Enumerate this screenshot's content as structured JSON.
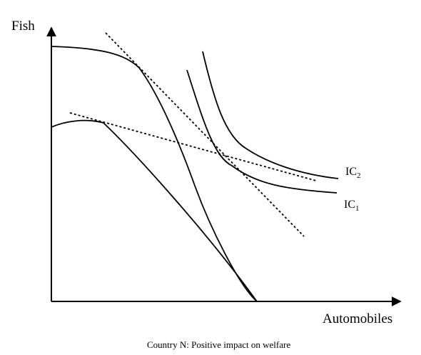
{
  "axes": {
    "y_label": "Fish",
    "x_label": "Automobiles"
  },
  "labels": {
    "ic2": "IC",
    "ic2_sub": "2",
    "ic1": "IC",
    "ic1_sub": "1"
  },
  "caption": "Country N: Positive impact on welfare"
}
